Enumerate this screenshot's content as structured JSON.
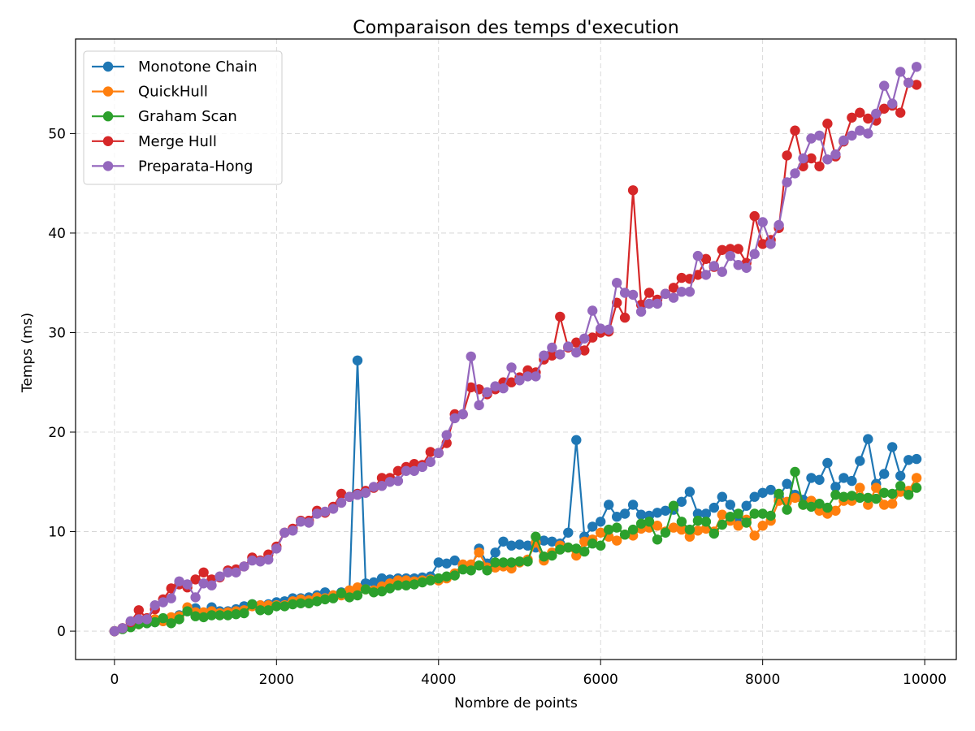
{
  "chart_data": {
    "type": "line",
    "title": "Comparaison des temps d'execution",
    "xlabel": "Nombre de points",
    "ylabel": "Temps (ms)",
    "xlim": [
      -480,
      10390
    ],
    "ylim": [
      -2.85,
      59.5
    ],
    "xticks": [
      0,
      2000,
      4000,
      6000,
      8000,
      10000
    ],
    "xtick_labels": [
      "0",
      "2000",
      "4000",
      "6000",
      "8000",
      "10000"
    ],
    "yticks": [
      0,
      10,
      20,
      30,
      40,
      50
    ],
    "ytick_labels": [
      "0",
      "10",
      "20",
      "30",
      "40",
      "50"
    ],
    "grid": true,
    "legend_position": "upper-left",
    "x": [
      0,
      100,
      200,
      300,
      400,
      500,
      600,
      700,
      800,
      900,
      1000,
      1100,
      1200,
      1300,
      1400,
      1500,
      1600,
      1700,
      1800,
      1900,
      2000,
      2100,
      2200,
      2300,
      2400,
      2500,
      2600,
      2700,
      2800,
      2900,
      3000,
      3100,
      3200,
      3300,
      3400,
      3500,
      3600,
      3700,
      3800,
      3900,
      4000,
      4100,
      4200,
      4300,
      4400,
      4500,
      4600,
      4700,
      4800,
      4900,
      5000,
      5100,
      5200,
      5300,
      5400,
      5500,
      5600,
      5700,
      5800,
      5900,
      6000,
      6100,
      6200,
      6300,
      6400,
      6500,
      6600,
      6700,
      6800,
      6900,
      7000,
      7100,
      7200,
      7300,
      7400,
      7500,
      7600,
      7700,
      7800,
      7900,
      8000,
      8100,
      8200,
      8300,
      8400,
      8500,
      8600,
      8700,
      8800,
      8900,
      9000,
      9100,
      9200,
      9300,
      9400,
      9500,
      9600,
      9700,
      9800,
      9900
    ],
    "series": [
      {
        "name": "Monotone Chain",
        "color": "#1f77b4",
        "values": [
          0,
          0.3,
          0.5,
          0.8,
          0.8,
          0.9,
          1.0,
          1.1,
          1.6,
          2.0,
          2.3,
          1.8,
          2.4,
          2.0,
          2.0,
          2.2,
          2.5,
          2.7,
          2.6,
          2.7,
          2.9,
          3.0,
          3.3,
          3.3,
          3.4,
          3.6,
          3.9,
          3.6,
          3.9,
          4.0,
          27.2,
          4.8,
          4.9,
          5.3,
          5.2,
          5.3,
          5.3,
          5.3,
          5.4,
          5.5,
          6.9,
          6.8,
          7.1,
          6.6,
          6.4,
          8.3,
          6.8,
          7.9,
          9.0,
          8.6,
          8.7,
          8.6,
          8.4,
          9.1,
          9.0,
          8.8,
          9.9,
          19.2,
          9.5,
          10.5,
          11.0,
          12.7,
          11.5,
          11.8,
          12.7,
          11.7,
          11.6,
          11.9,
          12.1,
          12.2,
          13.0,
          14.0,
          11.8,
          11.8,
          12.4,
          13.5,
          12.7,
          11.3,
          12.6,
          13.5,
          13.9,
          14.2,
          13.5,
          14.8,
          13.7,
          13.2,
          15.4,
          15.2,
          16.9,
          14.5,
          15.4,
          15.1,
          17.1,
          19.3,
          14.8,
          15.8,
          18.5,
          15.6,
          17.2,
          17.3
        ]
      },
      {
        "name": "QuickHull",
        "color": "#ff7f0e",
        "values": [
          0,
          0.3,
          0.6,
          0.7,
          1.0,
          1.2,
          1.0,
          1.4,
          1.5,
          2.4,
          1.9,
          1.9,
          2.0,
          1.8,
          1.9,
          2.0,
          2.1,
          2.5,
          2.6,
          2.6,
          2.6,
          2.6,
          3.0,
          3.2,
          3.1,
          3.4,
          3.3,
          3.6,
          3.6,
          4.1,
          4.4,
          4.2,
          4.1,
          4.5,
          4.8,
          5.1,
          5.1,
          5.0,
          5.1,
          5.2,
          5.1,
          5.3,
          5.8,
          6.7,
          6.7,
          7.9,
          6.4,
          6.4,
          6.5,
          6.3,
          6.9,
          7.2,
          8.9,
          7.1,
          7.9,
          8.6,
          8.4,
          7.6,
          9.0,
          9.2,
          9.9,
          9.5,
          9.1,
          9.7,
          9.6,
          10.3,
          10.4,
          10.6,
          10.0,
          10.4,
          10.2,
          9.5,
          10.1,
          10.3,
          10.0,
          11.7,
          11.1,
          10.6,
          11.2,
          9.6,
          10.6,
          11.1,
          13.1,
          13.0,
          13.4,
          12.7,
          13.1,
          12.1,
          11.8,
          12.1,
          13.1,
          13.1,
          14.4,
          12.7,
          14.4,
          12.7,
          12.8,
          14.0,
          14.1,
          15.4
        ]
      },
      {
        "name": "Graham Scan",
        "color": "#2ca02c",
        "values": [
          0,
          0.2,
          0.4,
          0.7,
          0.8,
          0.9,
          1.3,
          0.8,
          1.2,
          2.0,
          1.5,
          1.4,
          1.6,
          1.6,
          1.6,
          1.7,
          1.8,
          2.7,
          2.1,
          2.1,
          2.5,
          2.5,
          2.7,
          2.8,
          2.8,
          3.0,
          3.2,
          3.3,
          3.8,
          3.4,
          3.6,
          4.2,
          3.9,
          4.0,
          4.3,
          4.6,
          4.6,
          4.7,
          4.9,
          5.1,
          5.3,
          5.5,
          5.6,
          6.2,
          6.1,
          6.6,
          6.1,
          6.9,
          6.9,
          6.9,
          7.0,
          7.0,
          9.5,
          7.5,
          7.6,
          8.2,
          8.4,
          8.3,
          8.0,
          8.8,
          8.6,
          10.2,
          10.4,
          9.7,
          10.2,
          10.8,
          11.0,
          9.2,
          9.9,
          12.6,
          11.0,
          10.2,
          11.1,
          11.0,
          9.8,
          10.7,
          11.5,
          11.8,
          10.9,
          11.8,
          11.8,
          11.6,
          13.8,
          12.2,
          16.0,
          12.7,
          12.5,
          12.8,
          12.4,
          13.7,
          13.5,
          13.6,
          13.4,
          13.4,
          13.3,
          13.9,
          13.8,
          14.6,
          13.7,
          14.4
        ]
      },
      {
        "name": "Merge Hull",
        "color": "#d62728",
        "values": [
          0,
          0.3,
          0.9,
          2.1,
          1.3,
          2.2,
          3.2,
          4.3,
          4.7,
          4.4,
          5.2,
          5.9,
          5.2,
          5.4,
          6.1,
          6.2,
          6.5,
          7.4,
          7.1,
          7.7,
          8.5,
          9.9,
          10.3,
          11.1,
          11.1,
          12.1,
          11.9,
          12.5,
          13.8,
          13.5,
          13.8,
          14.1,
          14.4,
          15.4,
          15.4,
          16.1,
          16.5,
          16.8,
          16.7,
          18.0,
          17.9,
          18.9,
          21.8,
          21.8,
          24.5,
          24.3,
          23.8,
          24.3,
          25.0,
          25.0,
          25.5,
          26.2,
          26.0,
          27.3,
          27.7,
          31.6,
          28.5,
          29.0,
          28.2,
          29.5,
          30.0,
          30.1,
          33.0,
          31.5,
          44.3,
          32.8,
          34.0,
          33.3,
          33.9,
          34.5,
          35.5,
          35.4,
          35.8,
          37.4,
          36.6,
          38.3,
          38.4,
          38.4,
          37.0,
          41.7,
          38.9,
          39.3,
          40.5,
          47.8,
          50.3,
          46.7,
          47.5,
          46.7,
          51.0,
          47.7,
          49.2,
          51.6,
          52.1,
          51.5,
          51.3,
          52.5,
          52.8,
          52.1,
          55.1,
          54.9
        ]
      },
      {
        "name": "Preparata-Hong",
        "color": "#9467bd",
        "values": [
          0,
          0.3,
          1.0,
          1.2,
          1.2,
          2.6,
          2.9,
          3.3,
          5.0,
          4.7,
          3.4,
          4.8,
          4.6,
          5.5,
          5.9,
          5.9,
          6.5,
          7.1,
          7.0,
          7.2,
          8.3,
          9.9,
          10.1,
          11.0,
          10.9,
          11.8,
          12.0,
          12.3,
          12.9,
          13.5,
          13.7,
          13.9,
          14.5,
          14.6,
          15.0,
          15.1,
          16.1,
          16.1,
          16.5,
          17.0,
          17.9,
          19.7,
          21.4,
          21.8,
          27.6,
          22.7,
          24.0,
          24.6,
          24.4,
          26.5,
          25.2,
          25.6,
          25.6,
          27.7,
          28.5,
          27.8,
          28.6,
          28.0,
          29.4,
          32.2,
          30.4,
          30.3,
          35.0,
          34.0,
          33.8,
          32.1,
          32.9,
          32.9,
          33.9,
          33.5,
          34.1,
          34.1,
          37.7,
          35.8,
          36.7,
          36.1,
          37.7,
          36.8,
          36.5,
          37.9,
          41.1,
          38.9,
          40.8,
          45.1,
          46.0,
          47.5,
          49.5,
          49.8,
          47.4,
          47.9,
          49.3,
          49.8,
          50.3,
          50.0,
          52.0,
          54.8,
          53.0,
          56.2,
          55.1,
          56.7
        ]
      }
    ]
  }
}
